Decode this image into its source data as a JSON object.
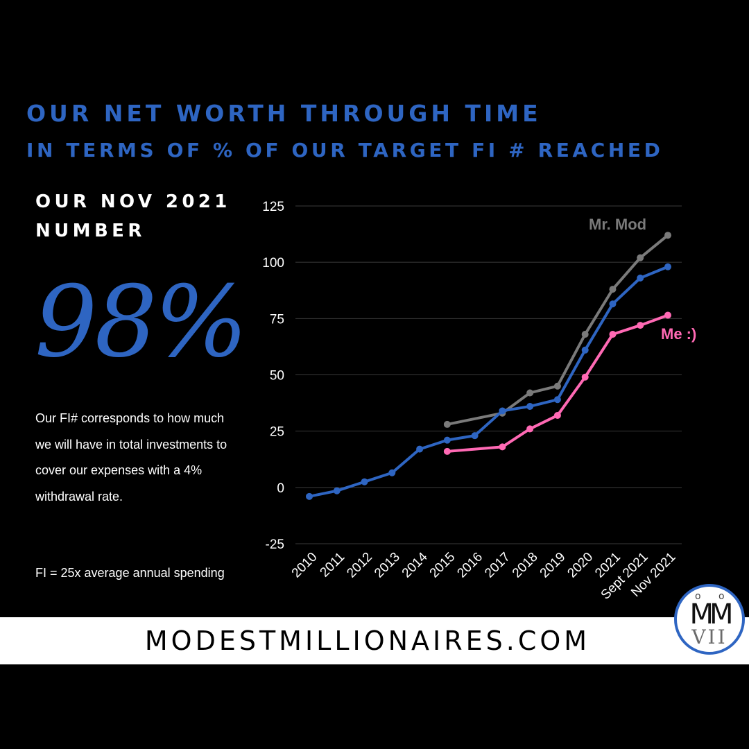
{
  "title_line1": "OUR NET WORTH THROUGH TIME",
  "title_line2": "IN TERMS OF % OF OUR TARGET FI # REACHED",
  "subhead": "OUR NOV 2021 NUMBER",
  "big_number": "98%",
  "explanation": "Our FI# corresponds to how much we will have in total investments to cover our expenses with a 4%  withdrawal rate.",
  "fi_note": "FI = 25x average annual spending",
  "website": "MODESTMILLIONAIRES.COM",
  "logo": {
    "top": "o o",
    "main": "MM",
    "bottom": "VII"
  },
  "colors": {
    "title_blue": "#2E65C2",
    "pink": "#FF69B4",
    "gray": "#7A7A7A",
    "background": "#000000"
  },
  "chart_data": {
    "type": "line",
    "categories": [
      "2010",
      "2011",
      "2012",
      "2013",
      "2014",
      "2015",
      "2016",
      "2017",
      "2018",
      "2019",
      "2020",
      "2021",
      "Sept 2021",
      "Nov 2021"
    ],
    "ylim": [
      -25,
      125
    ],
    "yticks": [
      125,
      100,
      75,
      50,
      25,
      0,
      -25
    ],
    "grid": true,
    "series": [
      {
        "name": "Mr. Mod",
        "color": "#7A7A7A",
        "values": [
          null,
          null,
          null,
          null,
          null,
          28,
          null,
          33,
          42,
          45,
          68,
          88,
          102,
          112
        ]
      },
      {
        "name": "",
        "color": "#2E65C2",
        "values": [
          -4,
          -1.5,
          2.5,
          6.5,
          17,
          21,
          23,
          34,
          36,
          39,
          61,
          81.5,
          93,
          98
        ]
      },
      {
        "name": "Me :)",
        "color": "#FF69B4",
        "values": [
          null,
          null,
          null,
          null,
          null,
          16,
          null,
          18,
          26,
          32,
          49,
          68,
          72,
          76.5
        ]
      }
    ]
  }
}
